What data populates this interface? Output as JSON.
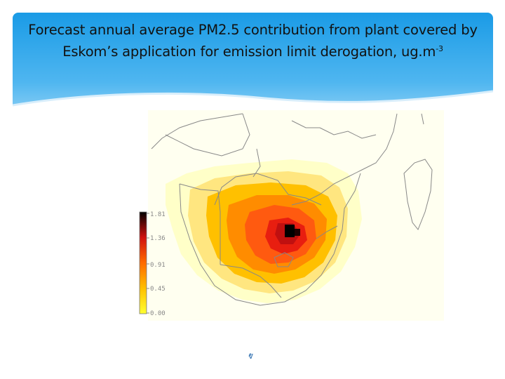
{
  "slide": {
    "title_main": "Forecast annual average PM2.5 contribution from plant covered by Eskom’s application for emission limit derogation, ug.m",
    "title_sup": "-3",
    "footer_mark": "ⱴ"
  },
  "map": {
    "colorbar": {
      "ticks": [
        "1.81",
        "1.36",
        "0.91",
        "0.45",
        "0.00"
      ],
      "colors": [
        "#000000",
        "#d01010",
        "#ff6a00",
        "#ffc000",
        "#ffff30"
      ]
    },
    "colors": {
      "background": "#fffff0",
      "pale": "#ffffc8",
      "border_line": "#888888"
    }
  }
}
